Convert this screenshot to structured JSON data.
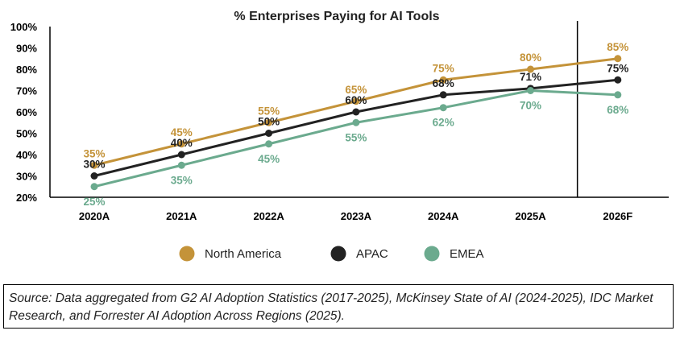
{
  "chart_data": {
    "type": "line",
    "title": "% Enterprises Paying for AI Tools",
    "categories": [
      "2020A",
      "2021A",
      "2022A",
      "2023A",
      "2024A",
      "2025A",
      "2026F"
    ],
    "y_ticks": [
      "100%",
      "90%",
      "80%",
      "70%",
      "60%",
      "50%",
      "40%",
      "30%",
      "20%"
    ],
    "ylim": [
      20,
      100
    ],
    "forecast_divider_after": "2025A",
    "legend_position": "bottom-center",
    "series": [
      {
        "name": "North America",
        "color": "#C49339",
        "values": [
          35,
          45,
          55,
          65,
          75,
          80,
          85
        ],
        "labels": [
          "35%",
          "45%",
          "55%",
          "65%",
          "75%",
          "80%",
          "85%"
        ],
        "label_position": "above"
      },
      {
        "name": "APAC",
        "color": "#222222",
        "values": [
          30,
          40,
          50,
          60,
          68,
          71,
          75
        ],
        "labels": [
          "30%",
          "40%",
          "50%",
          "60%",
          "68%",
          "71%",
          "75%"
        ],
        "label_position": "above"
      },
      {
        "name": "EMEA",
        "color": "#6BAA8E",
        "values": [
          25,
          35,
          45,
          55,
          62,
          70,
          68
        ],
        "labels": [
          "25%",
          "35%",
          "45%",
          "55%",
          "62%",
          "70%",
          "68%"
        ],
        "label_position": "below"
      }
    ]
  },
  "source_note": "Source: Data aggregated from G2 AI Adoption Statistics (2017-2025), McKinsey State of AI (2024-2025), IDC Market Research, and Forrester AI Adoption Across Regions (2025)."
}
